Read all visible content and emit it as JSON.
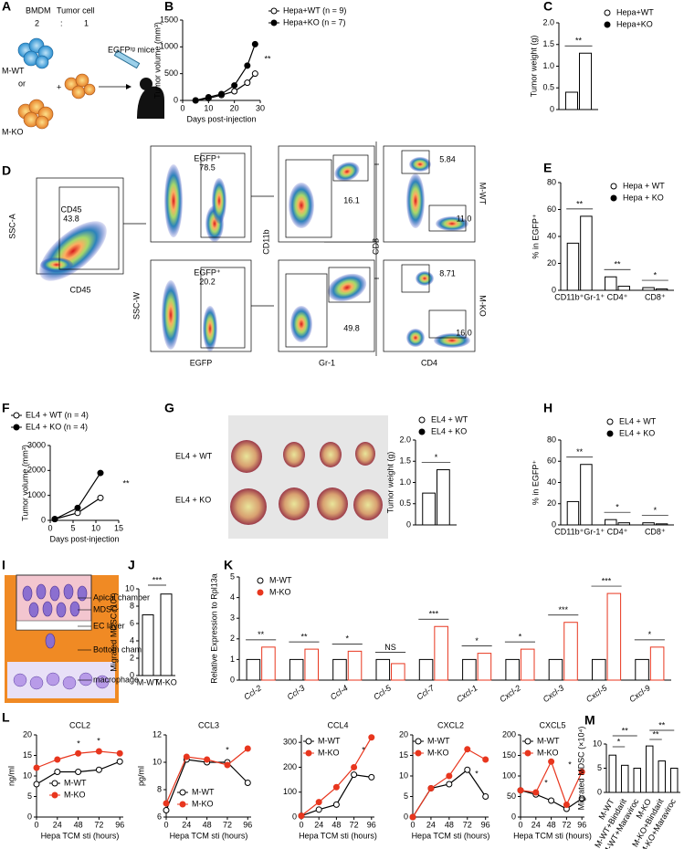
{
  "diagram_a": {
    "panel": "A",
    "bmdm": "BMDM",
    "tumor": "Tumor cell",
    "ratio_left": "2",
    "ratio_sep": ":",
    "ratio_right": "1",
    "wt": "M-WT",
    "or": "or",
    "ko": "M-KO",
    "plus": "+",
    "mice": "EGFPᵗᵍ mice"
  },
  "flow_d": {
    "panel": "D",
    "group_top": "M-WT",
    "group_bottom": "M-KO",
    "plots": [
      {
        "xlabel": "CD45",
        "ylabel": "SSC-A",
        "gates": [
          "CD45",
          "43.8"
        ]
      },
      {
        "gates": [
          "EGFP⁺",
          "78.5"
        ]
      },
      {
        "xlabel": "EGFP",
        "ylabel": "SSC-W",
        "gates": [
          "EGFP⁺",
          "20.2"
        ]
      },
      {
        "gates": [
          "16.1"
        ]
      },
      {
        "xlabel": "Gr-1",
        "ylabel": "CD11b",
        "gates": [
          "49.8"
        ]
      },
      {
        "gates": [
          "5.84",
          "11.0"
        ]
      },
      {
        "xlabel": "CD4",
        "ylabel": "CD8",
        "gates": [
          "8.71",
          "16.0"
        ]
      }
    ]
  },
  "photo_g": {
    "panel": "G",
    "row_top": "EL4 + WT",
    "row_bottom": "EL4 + KO"
  },
  "diagram_i": {
    "panel": "I",
    "apical": "Apical chamber",
    "mdsc": "MDSC",
    "ec": "EC layer",
    "bottom": "Bottom chamber",
    "macrophage": "macrophage"
  },
  "chart_data": [
    {
      "type": "line",
      "panel": "B",
      "ylabel": "Tumor volume (mm³)",
      "xlabel": "Days post-injection",
      "x": [
        5,
        10,
        15,
        20,
        25,
        28
      ],
      "xlim": [
        0,
        30
      ],
      "xticks": [
        0,
        10,
        20,
        30
      ],
      "ylim": [
        0,
        1500
      ],
      "yticks": [
        0,
        500,
        1000,
        1500
      ],
      "series": [
        {
          "name": "Hepa+WT (n = 9)",
          "color": "#000000",
          "marker": "open",
          "values": [
            0,
            40,
            100,
            170,
            330,
            500
          ]
        },
        {
          "name": "Hepa+KO (n = 7)",
          "color": "#000000",
          "marker": "filled",
          "values": [
            0,
            60,
            120,
            280,
            650,
            1050
          ]
        }
      ],
      "annotations": [
        "**"
      ]
    },
    {
      "type": "bar",
      "panel": "C",
      "ylabel": "Tumor weight (g)",
      "categories": [
        null
      ],
      "ylim": [
        0,
        2
      ],
      "yticks": [
        0,
        0.5,
        {
          "value": 1,
          "label": "1.0"
        },
        1.5,
        {
          "value": 2,
          "label": "2.0"
        }
      ],
      "series": [
        {
          "name": "Hepa+WT",
          "color": "#000000",
          "marker": "open",
          "values": [
            0.4
          ]
        },
        {
          "name": "Hepa+KO",
          "color": "#000000",
          "marker": "filled",
          "values": [
            1.3
          ]
        }
      ],
      "annotations": [
        "**"
      ]
    },
    {
      "type": "bar",
      "panel": "E",
      "ylabel": "% in EGFP⁺",
      "categories": [
        "CD11b⁺Gr-1⁺",
        "CD4⁺",
        "CD8⁺"
      ],
      "ylim": [
        0,
        80
      ],
      "yticks": [
        0,
        20,
        40,
        60,
        80
      ],
      "series": [
        {
          "name": "Hepa + WT",
          "color": "#000000",
          "marker": "open",
          "values": [
            35,
            10,
            2
          ]
        },
        {
          "name": "Hepa + KO",
          "color": "#000000",
          "marker": "filled",
          "values": [
            55,
            3,
            1
          ]
        }
      ],
      "annotations": [
        "**",
        "**",
        "*"
      ]
    },
    {
      "type": "line",
      "panel": "F",
      "ylabel": "Tumor volume (mm³)",
      "xlabel": "Days post-injection",
      "x": [
        1,
        6,
        11
      ],
      "xlim": [
        0,
        15
      ],
      "xticks": [
        0,
        5,
        10,
        15
      ],
      "ylim": [
        0,
        3000
      ],
      "yticks": [
        0,
        1000,
        2000,
        3000
      ],
      "series": [
        {
          "name": "EL4 + WT (n = 4)",
          "color": "#000000",
          "marker": "open",
          "values": [
            50,
            300,
            900
          ]
        },
        {
          "name": "EL4 + KO (n = 4)",
          "color": "#000000",
          "marker": "filled",
          "values": [
            50,
            500,
            1900
          ]
        }
      ],
      "annotations": [
        "**"
      ]
    },
    {
      "type": "bar",
      "ylabel": "Tumor weight (g)",
      "categories": [
        null
      ],
      "ylim": [
        0,
        2
      ],
      "yticks": [
        0,
        0.5,
        {
          "value": 1,
          "label": "1.0"
        },
        1.5,
        {
          "value": 2,
          "label": "2.0"
        }
      ],
      "series": [
        {
          "name": "EL4 + WT",
          "color": "#000000",
          "marker": "open",
          "values": [
            0.75
          ]
        },
        {
          "name": "EL4 + KO",
          "color": "#000000",
          "marker": "filled",
          "values": [
            1.3
          ]
        }
      ],
      "annotations": [
        "*"
      ]
    },
    {
      "type": "bar",
      "panel": "H",
      "ylabel": "% in EGFP⁺",
      "categories": [
        "CD11b⁺Gr-1⁺",
        "CD4⁺",
        "CD8⁺"
      ],
      "ylim": [
        0,
        80
      ],
      "yticks": [
        0,
        20,
        40,
        60,
        80
      ],
      "series": [
        {
          "name": "EL4 + WT",
          "color": "#000000",
          "marker": "open",
          "values": [
            22,
            5,
            2
          ]
        },
        {
          "name": "EL4 + KO",
          "color": "#000000",
          "marker": "filled",
          "values": [
            57,
            2,
            1
          ]
        }
      ],
      "annotations": [
        "**",
        "*",
        "*"
      ]
    },
    {
      "type": "bar",
      "panel": "J",
      "ylabel": "Migrated MDSC (10⁴)",
      "categories": [
        "M-WT",
        "M-KO"
      ],
      "ylim": [
        0,
        10
      ],
      "yticks": [
        0,
        2,
        4,
        6,
        8,
        10
      ],
      "values": [
        7,
        9.4
      ],
      "color": "#000000",
      "annotations": [
        "***"
      ]
    },
    {
      "type": "bar",
      "panel": "K",
      "ylabel": "Relative Expression to Rpl13a",
      "categories": [
        "Ccl-2",
        "Ccl-3",
        "Ccl-4",
        "Ccl-5",
        "Ccl-7",
        "Cxcl-1",
        "Cxcl-2",
        "Cxcl-3",
        "Cxcl-5",
        "Cxcl-9"
      ],
      "ylim": [
        0,
        5
      ],
      "yticks": [
        0,
        1,
        2,
        3,
        4,
        5
      ],
      "series": [
        {
          "name": "M-WT",
          "color": "#000000",
          "marker": "open",
          "values": [
            1,
            1,
            1,
            1,
            1,
            1,
            1,
            1,
            1,
            1
          ]
        },
        {
          "name": "M-KO",
          "color": "#e8361e",
          "marker": "filled",
          "values": [
            1.6,
            1.5,
            1.4,
            0.8,
            2.6,
            1.3,
            1.5,
            2.8,
            4.2,
            1.6
          ]
        }
      ],
      "annotations": [
        "**",
        "**",
        "*",
        "NS",
        "***",
        "*",
        "*",
        "***",
        "***",
        "*"
      ]
    },
    {
      "type": "line",
      "panel": "L",
      "title": "CCL2",
      "ylabel": "ng/ml",
      "xlabel": "Hepa TCM sti (hours)",
      "x": [
        0,
        24,
        48,
        72,
        96
      ],
      "xlim": [
        0,
        100
      ],
      "xticks": [
        0,
        24,
        48,
        72,
        96
      ],
      "ylim": [
        0,
        20
      ],
      "yticks": [
        0,
        5,
        10,
        15,
        20
      ],
      "series": [
        {
          "name": "M-WT",
          "color": "#000000",
          "marker": "open",
          "values": [
            8,
            11,
            11,
            11.5,
            13.5
          ]
        },
        {
          "name": "M-KO",
          "color": "#e8361e",
          "marker": "filled",
          "values": [
            12,
            14,
            15.5,
            16,
            15.5
          ]
        }
      ],
      "annotations": [
        "*",
        "*"
      ]
    },
    {
      "type": "line",
      "title": "CCL3",
      "ylabel": "pg/ml",
      "xlabel": "Hepa TCM sti (hours)",
      "x": [
        0,
        24,
        48,
        72,
        96
      ],
      "xlim": [
        0,
        100
      ],
      "xticks": [
        0,
        24,
        48,
        72,
        96
      ],
      "ylim": [
        6,
        12
      ],
      "yticks": [
        6,
        8,
        10,
        12
      ],
      "series": [
        {
          "name": "M-WT",
          "color": "#000000",
          "marker": "open",
          "values": [
            6.5,
            10.2,
            10,
            10,
            8.5
          ]
        },
        {
          "name": "M-KO",
          "color": "#e8361e",
          "marker": "filled",
          "values": [
            7,
            10.4,
            10.2,
            9.8,
            11
          ]
        }
      ],
      "annotations": [
        "*"
      ]
    },
    {
      "type": "line",
      "title": "CCL4",
      "xlabel": "Hepa TCM sti (hours)",
      "x": [
        0,
        24,
        48,
        72,
        96
      ],
      "xlim": [
        0,
        100
      ],
      "xticks": [
        0,
        24,
        48,
        72,
        96
      ],
      "ylim": [
        0,
        330
      ],
      "yticks": [
        0,
        100,
        200,
        300
      ],
      "series": [
        {
          "name": "M-WT",
          "color": "#000000",
          "marker": "open",
          "values": [
            5,
            30,
            50,
            170,
            160
          ]
        },
        {
          "name": "M-KO",
          "color": "#e8361e",
          "marker": "filled",
          "values": [
            5,
            60,
            120,
            200,
            320
          ]
        }
      ],
      "annotations": [
        "*"
      ]
    },
    {
      "type": "line",
      "title": "CXCL2",
      "xlabel": "Hepa TCM sti (hours)",
      "x": [
        0,
        24,
        48,
        72,
        96
      ],
      "xlim": [
        0,
        100
      ],
      "xticks": [
        0,
        24,
        48,
        72,
        96
      ],
      "ylim": [
        0,
        20
      ],
      "yticks": [
        0,
        5,
        10,
        15,
        20
      ],
      "series": [
        {
          "name": "M-WT",
          "color": "#000000",
          "marker": "open",
          "values": [
            0,
            7,
            8,
            11.5,
            5
          ]
        },
        {
          "name": "M-KO",
          "color": "#e8361e",
          "marker": "filled",
          "values": [
            0,
            7,
            10,
            16.5,
            14
          ]
        }
      ],
      "annotations": [
        "*"
      ]
    },
    {
      "type": "line",
      "title": "CXCL5",
      "xlabel": "Hepa TCM sti (hours)",
      "x": [
        0,
        24,
        48,
        72,
        96
      ],
      "xlim": [
        0,
        100
      ],
      "xticks": [
        0,
        24,
        48,
        72,
        96
      ],
      "ylim": [
        0,
        200
      ],
      "yticks": [
        0,
        50,
        100,
        150,
        200
      ],
      "series": [
        {
          "name": "M-WT",
          "color": "#000000",
          "marker": "open",
          "values": [
            65,
            55,
            40,
            20,
            45
          ]
        },
        {
          "name": "M-KO",
          "color": "#e8361e",
          "marker": "filled",
          "values": [
            65,
            60,
            135,
            30,
            110
          ]
        }
      ],
      "annotations": [
        "*",
        "*"
      ]
    },
    {
      "type": "bar",
      "panel": "M",
      "ylabel": "Migrated MDSC (×10⁴)",
      "categories": [
        "M-WT",
        "M-WT+Bindarit",
        "M-WT+Maraviroc",
        "M-KO",
        "M-KO+Bindarit",
        "M-KO+Maraviroc"
      ],
      "ylim": [
        0,
        10
      ],
      "yticks": [
        0,
        5,
        10
      ],
      "values": [
        7.7,
        5.6,
        5,
        9.6,
        6.5,
        5
      ],
      "color": "#000000",
      "annotations": [
        "**",
        "*",
        "**",
        "**"
      ]
    }
  ]
}
